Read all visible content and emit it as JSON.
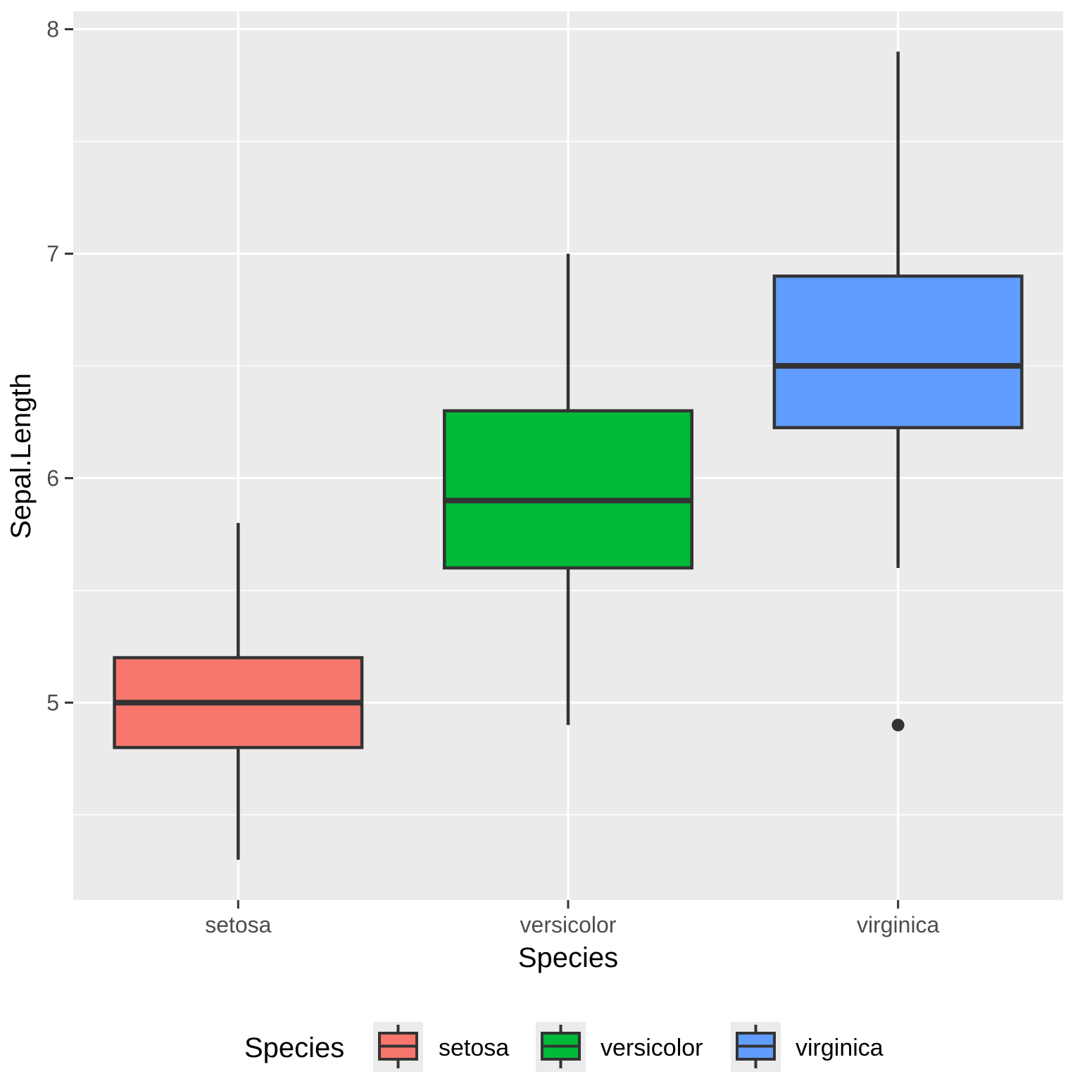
{
  "chart_data": {
    "type": "boxplot",
    "xlabel": "Species",
    "ylabel": "Sepal.Length",
    "categories": [
      "setosa",
      "versicolor",
      "virginica"
    ],
    "ylim": [
      4.12,
      8.08
    ],
    "yticks": [
      5,
      6,
      7,
      8
    ],
    "grid": true,
    "series": [
      {
        "name": "setosa",
        "color": "#F8766D",
        "min": 4.3,
        "q1": 4.8,
        "median": 5.0,
        "q3": 5.2,
        "max": 5.8,
        "outliers": []
      },
      {
        "name": "versicolor",
        "color": "#00BA38",
        "min": 4.9,
        "q1": 5.6,
        "median": 5.9,
        "q3": 6.3,
        "max": 7.0,
        "outliers": []
      },
      {
        "name": "virginica",
        "color": "#619CFF",
        "min": 5.6,
        "q1": 6.225,
        "median": 6.5,
        "q3": 6.9,
        "max": 7.9,
        "outliers": [
          4.9
        ]
      }
    ],
    "legend": {
      "title": "Species",
      "position": "bottom",
      "entries": [
        "setosa",
        "versicolor",
        "virginica"
      ]
    }
  }
}
